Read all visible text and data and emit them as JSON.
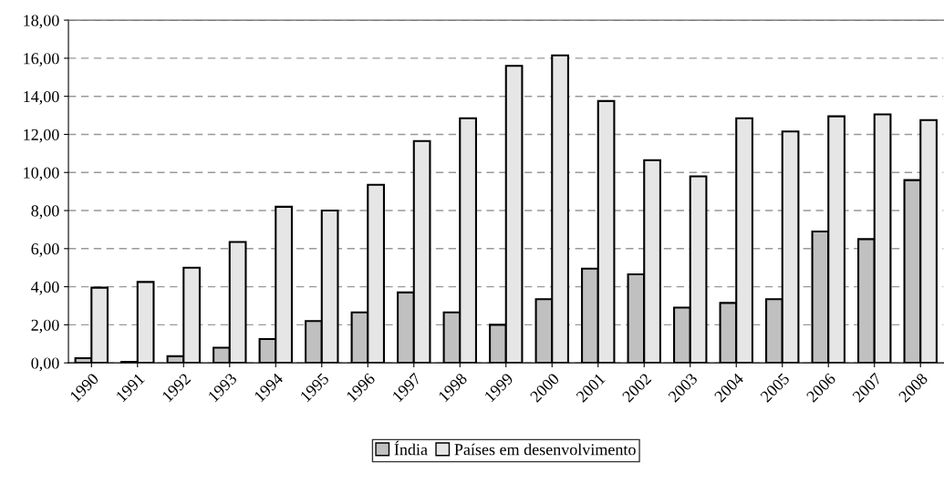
{
  "chart_data": {
    "type": "bar",
    "categories": [
      "1990",
      "1991",
      "1992",
      "1993",
      "1994",
      "1995",
      "1996",
      "1997",
      "1998",
      "1999",
      "2000",
      "2001",
      "2002",
      "2003",
      "2004",
      "2005",
      "2006",
      "2007",
      "2008"
    ],
    "series": [
      {
        "name": "Índia",
        "color": "#c0c0c0",
        "values": [
          0.25,
          0.05,
          0.35,
          0.8,
          1.25,
          2.2,
          2.65,
          3.7,
          2.65,
          2.0,
          3.35,
          4.95,
          4.65,
          2.9,
          3.15,
          3.35,
          6.9,
          6.5,
          9.6
        ]
      },
      {
        "name": "Países em desenvolvimento",
        "color": "#e6e6e6",
        "values": [
          3.95,
          4.25,
          5.0,
          6.35,
          8.2,
          8.0,
          9.35,
          11.65,
          12.85,
          15.6,
          16.15,
          13.75,
          10.65,
          9.8,
          12.85,
          12.15,
          12.95,
          13.05,
          12.75
        ]
      }
    ],
    "ylim": [
      0,
      18
    ],
    "yticks": [
      {
        "value": 0,
        "label": "0,00"
      },
      {
        "value": 2,
        "label": "2,00"
      },
      {
        "value": 4,
        "label": "4,00"
      },
      {
        "value": 6,
        "label": "6,00"
      },
      {
        "value": 8,
        "label": "8,00"
      },
      {
        "value": 10,
        "label": "10,00"
      },
      {
        "value": 12,
        "label": "12,00"
      },
      {
        "value": 14,
        "label": "14,00"
      },
      {
        "value": 16,
        "label": "16,00"
      },
      {
        "value": 18,
        "label": "18,00"
      }
    ],
    "grid": "y",
    "line_style": "dashed",
    "legend": "bottom"
  }
}
